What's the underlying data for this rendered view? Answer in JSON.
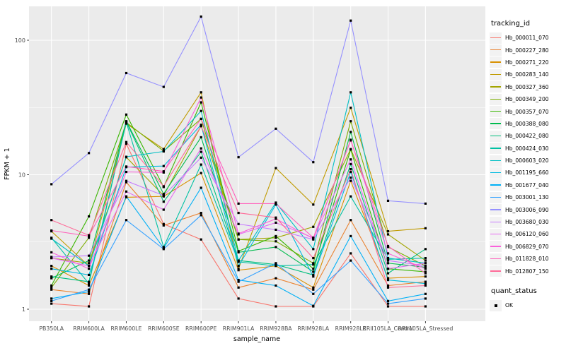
{
  "figure": {
    "background": "#ffffff",
    "panel_background": "#ebebeb",
    "gridline_color": "#ffffff",
    "axis_text_color": "#4d4d4d",
    "x_axis_title": "sample_name",
    "y_axis_title": "FPKM + 1"
  },
  "legend": {
    "tracking_title": "tracking_id",
    "quant_title": "quant_status",
    "quant_value": "OK",
    "key_fill": "#f2f2f2",
    "point_shape": "black-square"
  },
  "chart_data": {
    "type": "line",
    "title": "",
    "xlabel": "sample_name",
    "ylabel": "FPKM + 1",
    "y_scale": "log10",
    "ylim": [
      0.81,
      180
    ],
    "yticks": [
      1,
      10,
      100
    ],
    "y_minor_ticks": [
      3.162,
      31.62
    ],
    "grid": true,
    "legend_position": "right",
    "point_marker": "filled-black-square",
    "categories": [
      "PB350LA",
      "RRIM600LA",
      "RRIM600LE",
      "RRIM600SE",
      "RRIM600PE",
      "RRIM901LA",
      "RRIM928BA",
      "RRIM928LA",
      "RRIM928LE",
      "RRII105LA_Control",
      "RRII105LA_Stressed"
    ],
    "series": [
      {
        "name": "Hb_000011_070",
        "color": "#F8766D",
        "values": [
          1.1,
          1.05,
          17.0,
          4.3,
          3.3,
          1.2,
          1.05,
          1.05,
          2.6,
          1.05,
          1.05
        ]
      },
      {
        "name": "Hb_000227_280",
        "color": "#EA8331",
        "values": [
          1.4,
          1.3,
          8.8,
          4.2,
          5.2,
          1.45,
          1.7,
          1.4,
          4.6,
          1.5,
          1.6
        ]
      },
      {
        "name": "Hb_000271_220",
        "color": "#D89000",
        "values": [
          2.1,
          1.5,
          6.8,
          6.9,
          10.3,
          1.95,
          2.1,
          1.45,
          9.0,
          1.7,
          1.75
        ]
      },
      {
        "name": "Hb_000283_140",
        "color": "#C09B00",
        "values": [
          3.8,
          2.1,
          24.0,
          15.5,
          41.0,
          2.0,
          11.2,
          6.0,
          31.5,
          3.8,
          4.0
        ]
      },
      {
        "name": "Hb_000327_360",
        "color": "#A3A500",
        "values": [
          2.4,
          2.2,
          13.5,
          7.0,
          23.0,
          3.3,
          3.4,
          4.1,
          15.5,
          3.6,
          2.3
        ]
      },
      {
        "name": "Hb_000349_200",
        "color": "#7CAE00",
        "values": [
          1.45,
          3.4,
          24.5,
          15.0,
          26.0,
          3.3,
          3.2,
          2.2,
          25.0,
          2.9,
          2.1
        ]
      },
      {
        "name": "Hb_000357_070",
        "color": "#39B600",
        "values": [
          1.5,
          4.9,
          28.0,
          8.1,
          34.5,
          2.7,
          3.5,
          2.0,
          15.4,
          2.0,
          1.9
        ]
      },
      {
        "name": "Hb_000388_080",
        "color": "#00BB4E",
        "values": [
          1.7,
          2.3,
          25.0,
          7.2,
          19.0,
          2.65,
          2.9,
          1.9,
          20.8,
          2.2,
          2.05
        ]
      },
      {
        "name": "Hb_000422_080",
        "color": "#00BF7D",
        "values": [
          1.75,
          1.6,
          24.8,
          6.3,
          14.8,
          2.3,
          2.15,
          1.8,
          12.0,
          1.85,
          2.8
        ]
      },
      {
        "name": "Hb_000424_030",
        "color": "#00C1A3",
        "values": [
          3.4,
          1.55,
          24.6,
          2.9,
          11.9,
          2.25,
          2.1,
          2.15,
          6.9,
          2.35,
          2.4
        ]
      },
      {
        "name": "Hb_000603_020",
        "color": "#00BFC4",
        "values": [
          3.35,
          2.1,
          13.6,
          14.9,
          29.8,
          2.3,
          6.2,
          2.8,
          41.0,
          2.4,
          2.2
        ]
      },
      {
        "name": "Hb_001195_660",
        "color": "#00BAE0",
        "values": [
          2.0,
          1.8,
          11.4,
          11.6,
          23.5,
          2.1,
          6.0,
          1.75,
          10.5,
          1.65,
          1.55
        ]
      },
      {
        "name": "Hb_001677_040",
        "color": "#00B0F6",
        "values": [
          1.2,
          1.35,
          6.9,
          2.85,
          8.0,
          1.65,
          1.5,
          1.06,
          3.5,
          1.15,
          1.3
        ]
      },
      {
        "name": "Hb_003001_130",
        "color": "#35A2FF",
        "values": [
          1.15,
          1.4,
          4.6,
          2.8,
          5.0,
          1.6,
          2.2,
          1.3,
          2.3,
          1.1,
          1.2
        ]
      },
      {
        "name": "Hb_003006_090",
        "color": "#9590FF",
        "values": [
          8.5,
          14.5,
          57.0,
          45.0,
          150.0,
          13.5,
          22.0,
          12.4,
          140.0,
          6.4,
          6.1
        ]
      },
      {
        "name": "Hb_003680_030",
        "color": "#C77CFF",
        "values": [
          2.45,
          2.5,
          9.0,
          7.0,
          13.4,
          4.3,
          3.9,
          3.3,
          9.5,
          2.3,
          2.1
        ]
      },
      {
        "name": "Hb_006120_060",
        "color": "#E76BF3",
        "values": [
          2.4,
          2.1,
          7.5,
          5.5,
          15.7,
          3.6,
          4.4,
          3.4,
          13.0,
          2.0,
          2.2
        ]
      },
      {
        "name": "Hb_006829_070",
        "color": "#FA62DB",
        "values": [
          2.65,
          2.0,
          10.5,
          10.4,
          37.5,
          3.65,
          4.7,
          3.35,
          18.2,
          2.6,
          2.0
        ]
      },
      {
        "name": "Hb_011828_010",
        "color": "#FF62BC",
        "values": [
          3.85,
          3.5,
          11.5,
          10.6,
          26.0,
          6.1,
          6.1,
          3.4,
          18.0,
          2.95,
          1.85
        ]
      },
      {
        "name": "Hb_012807_150",
        "color": "#FF6A98",
        "values": [
          4.6,
          3.55,
          17.5,
          8.2,
          23.0,
          5.2,
          4.8,
          2.4,
          11.0,
          1.45,
          1.5
        ]
      }
    ]
  }
}
